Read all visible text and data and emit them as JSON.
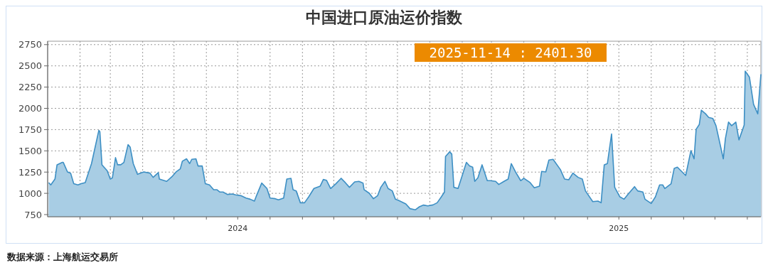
{
  "chart_data": {
    "type": "area",
    "title": "中国进口原油运价指数",
    "x": [
      "2024-01-02",
      "2024-01-04",
      "2024-01-08",
      "2024-01-10",
      "2024-01-15",
      "2024-01-16",
      "2024-01-20",
      "2024-01-23",
      "2024-01-26",
      "2024-01-30",
      "2024-02-02",
      "2024-02-06",
      "2024-02-12",
      "2024-02-19",
      "2024-02-20",
      "2024-02-22",
      "2024-02-27",
      "2024-03-01",
      "2024-03-03",
      "2024-03-06",
      "2024-03-08",
      "2024-03-11",
      "2024-03-14",
      "2024-03-18",
      "2024-03-20",
      "2024-03-23",
      "2024-03-27",
      "2024-04-02",
      "2024-04-08",
      "2024-04-11",
      "2024-04-16",
      "2024-04-17",
      "2024-04-24",
      "2024-04-29",
      "2024-05-03",
      "2024-05-07",
      "2024-05-09",
      "2024-05-13",
      "2024-05-16",
      "2024-05-18",
      "2024-05-22",
      "2024-05-24",
      "2024-05-28",
      "2024-05-31",
      "2024-06-04",
      "2024-06-08",
      "2024-06-11",
      "2024-06-14",
      "2024-06-17",
      "2024-06-21",
      "2024-06-26",
      "2024-06-29",
      "2024-07-04",
      "2024-07-09",
      "2024-07-13",
      "2024-07-17",
      "2024-07-19",
      "2024-07-24",
      "2024-07-29",
      "2024-08-01",
      "2024-08-06",
      "2024-08-09",
      "2024-08-14",
      "2024-08-17",
      "2024-08-21",
      "2024-08-23",
      "2024-08-26",
      "2024-08-30",
      "2024-09-03",
      "2024-09-07",
      "2024-09-12",
      "2024-09-18",
      "2024-09-21",
      "2024-09-24",
      "2024-09-28",
      "2024-10-03",
      "2024-10-08",
      "2024-10-12",
      "2024-10-16",
      "2024-10-21",
      "2024-10-25",
      "2024-10-29",
      "2024-10-30",
      "2024-11-04",
      "2024-11-08",
      "2024-11-12",
      "2024-11-15",
      "2024-11-19",
      "2024-11-22",
      "2024-11-26",
      "2024-11-29",
      "2024-12-02",
      "2024-12-09",
      "2024-12-13",
      "2024-12-18",
      "2024-12-22",
      "2024-12-26",
      "2024-12-30",
      "2025-01-04",
      "2025-01-08",
      "2025-01-12",
      "2025-01-15",
      "2025-01-16",
      "2025-01-20",
      "2025-01-22",
      "2025-01-24",
      "2025-01-28",
      "2025-02-01",
      "2025-02-05",
      "2025-02-08",
      "2025-02-11",
      "2025-02-13",
      "2025-02-16",
      "2025-02-20",
      "2025-02-25",
      "2025-02-28",
      "2025-03-05",
      "2025-03-08",
      "2025-03-13",
      "2025-03-17",
      "2025-03-20",
      "2025-03-24",
      "2025-03-29",
      "2025-04-01",
      "2025-04-07",
      "2025-04-11",
      "2025-04-16",
      "2025-04-18",
      "2025-04-22",
      "2025-04-25",
      "2025-04-29",
      "2025-05-06",
      "2025-05-10",
      "2025-05-14",
      "2025-05-18",
      "2025-05-23",
      "2025-05-27",
      "2025-05-30",
      "2025-06-06",
      "2025-06-11",
      "2025-06-14",
      "2025-06-17",
      "2025-06-20",
      "2025-06-24",
      "2025-06-27",
      "2025-07-02",
      "2025-07-06",
      "2025-07-10",
      "2025-07-16",
      "2025-07-19",
      "2025-07-24",
      "2025-07-26",
      "2025-08-01",
      "2025-08-05",
      "2025-08-09",
      "2025-08-12",
      "2025-08-14",
      "2025-08-20",
      "2025-08-23",
      "2025-08-26",
      "2025-09-03",
      "2025-09-08",
      "2025-09-11",
      "2025-09-13",
      "2025-09-16",
      "2025-09-18",
      "2025-09-22",
      "2025-09-25",
      "2025-09-29",
      "2025-10-02",
      "2025-10-09",
      "2025-10-11",
      "2025-10-14",
      "2025-10-17",
      "2025-10-21",
      "2025-10-24",
      "2025-10-29",
      "2025-10-30",
      "2025-11-03",
      "2025-11-07",
      "2025-11-11",
      "2025-11-14"
    ],
    "series": [
      {
        "color": "#3d8fc4",
        "values": [
          1127,
          1099,
          1168,
          1336,
          1364,
          1364,
          1252,
          1238,
          1113,
          1099,
          1113,
          1127,
          1350,
          1740,
          1726,
          1336,
          1266,
          1168,
          1182,
          1420,
          1336,
          1336,
          1364,
          1573,
          1545,
          1350,
          1224,
          1252,
          1238,
          1188,
          1244,
          1168,
          1141,
          1196,
          1252,
          1288,
          1378,
          1406,
          1350,
          1400,
          1406,
          1322,
          1322,
          1113,
          1099,
          1043,
          1043,
          1015,
          1015,
          987,
          993,
          982,
          973,
          945,
          931,
          909,
          973,
          1121,
          1057,
          945,
          937,
          923,
          945,
          1168,
          1177,
          1043,
          1029,
          889,
          889,
          959,
          1057,
          1085,
          1163,
          1154,
          1057,
          1113,
          1177,
          1127,
          1071,
          1135,
          1141,
          1121,
          1043,
          1001,
          937,
          973,
          1071,
          1141,
          1057,
          1029,
          931,
          917,
          876,
          820,
          806,
          842,
          862,
          853,
          864,
          889,
          959,
          1015,
          1434,
          1489,
          1462,
          1071,
          1057,
          1210,
          1364,
          1322,
          1308,
          1141,
          1182,
          1336,
          1149,
          1149,
          1141,
          1104,
          1141,
          1168,
          1350,
          1252,
          1149,
          1177,
          1127,
          1065,
          1085,
          1258,
          1252,
          1392,
          1400,
          1280,
          1168,
          1160,
          1238,
          1188,
          1168,
          1029,
          903,
          909,
          889,
          1336,
          1350,
          1699,
          1071,
          959,
          931,
          993,
          1079,
          1029,
          1015,
          931,
          881,
          959,
          1099,
          1099,
          1057,
          1113,
          1294,
          1308,
          1210,
          1503,
          1406,
          1754,
          1810,
          1978,
          1936,
          1894,
          1880,
          1796,
          1406,
          1643,
          1838,
          1796,
          1838,
          1629,
          1803,
          2438,
          2368,
          2047,
          1936,
          2401.3
        ]
      }
    ],
    "xlim": [
      "2024-01-01",
      "2025-11-14"
    ],
    "xticks": [
      {
        "value": "2024-02-01",
        "label": null
      },
      {
        "value": "2024-03-01",
        "label": null
      },
      {
        "value": "2024-04-01",
        "label": null
      },
      {
        "value": "2024-05-01",
        "label": null
      },
      {
        "value": "2024-06-01",
        "label": null
      },
      {
        "value": "2024-07-01",
        "label": "2024"
      },
      {
        "value": "2024-08-01",
        "label": null
      },
      {
        "value": "2024-09-01",
        "label": null
      },
      {
        "value": "2024-10-01",
        "label": null
      },
      {
        "value": "2024-11-01",
        "label": null
      },
      {
        "value": "2024-12-01",
        "label": null
      },
      {
        "value": "2025-01-01",
        "label": null
      },
      {
        "value": "2025-02-01",
        "label": null
      },
      {
        "value": "2025-03-01",
        "label": null
      },
      {
        "value": "2025-04-01",
        "label": null
      },
      {
        "value": "2025-05-01",
        "label": null
      },
      {
        "value": "2025-06-01",
        "label": null
      },
      {
        "value": "2025-07-01",
        "label": "2025"
      },
      {
        "value": "2025-08-01",
        "label": null
      },
      {
        "value": "2025-09-01",
        "label": null
      },
      {
        "value": "2025-10-01",
        "label": null
      },
      {
        "value": "2025-11-01",
        "label": null
      }
    ],
    "ylim": [
      725,
      2790
    ],
    "yticks": [
      750,
      1000,
      1250,
      1500,
      1750,
      2000,
      2250,
      2500,
      2750
    ],
    "grid": true,
    "annotations": [
      "2025-11-14 : 2401.30",
      "数据来源：上海航运交易所"
    ]
  }
}
